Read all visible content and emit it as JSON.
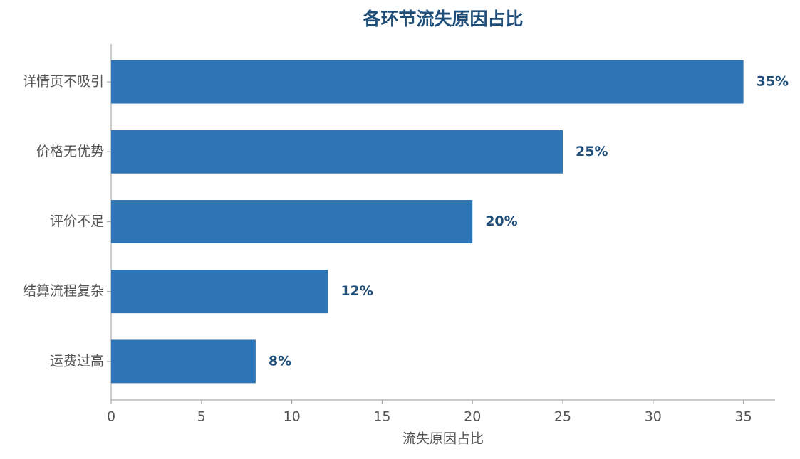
{
  "chart_data": {
    "type": "barh",
    "title": "各环节流失原因占比",
    "xlabel": "流失原因占比",
    "categories": [
      "详情页不吸引",
      "价格无优势",
      "评价不足",
      "结算流程复杂",
      "运费过高"
    ],
    "values": [
      35,
      25,
      20,
      12,
      8
    ],
    "value_labels": [
      "35%",
      "25%",
      "20%",
      "12%",
      "8%"
    ],
    "color": "#2e75b6",
    "xlim": [
      0,
      36.75
    ],
    "xticks": [
      0,
      5,
      10,
      15,
      20,
      25,
      30,
      35
    ],
    "grid": false
  }
}
